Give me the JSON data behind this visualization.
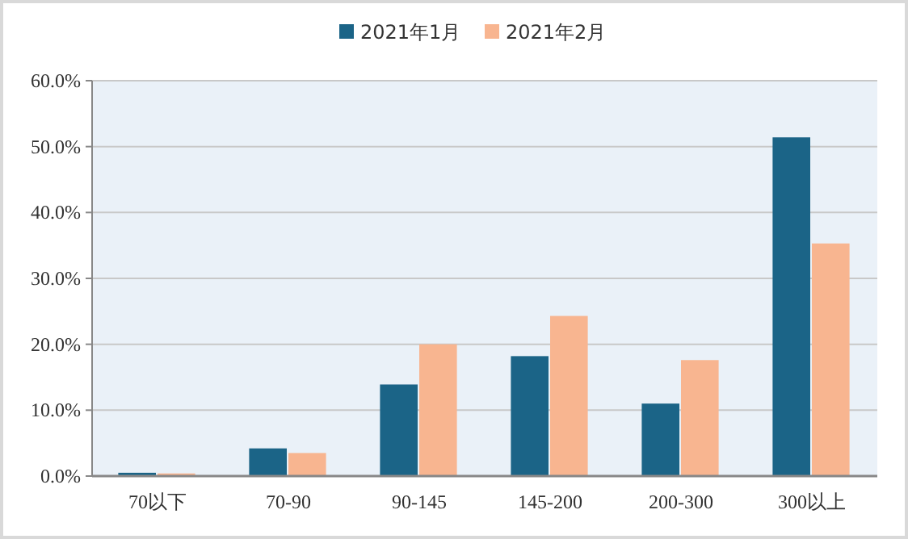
{
  "chart_data": {
    "type": "bar",
    "categories": [
      "70以下",
      "70-90",
      "90-145",
      "145-200",
      "200-300",
      "300以上"
    ],
    "series": [
      {
        "name": "2021年1月",
        "color": "#1b6487",
        "values": [
          0.5,
          4.2,
          13.9,
          18.2,
          11.0,
          51.4
        ]
      },
      {
        "name": "2021年2月",
        "color": "#f8b590",
        "values": [
          0.4,
          3.5,
          20.0,
          24.3,
          17.6,
          35.3
        ]
      }
    ],
    "ylim": [
      0,
      60
    ],
    "yticks": [
      {
        "value": 0,
        "label": "0.0%"
      },
      {
        "value": 10,
        "label": "10.0%"
      },
      {
        "value": 20,
        "label": "20.0%"
      },
      {
        "value": 30,
        "label": "30.0%"
      },
      {
        "value": 40,
        "label": "40.0%"
      },
      {
        "value": 50,
        "label": "50.0%"
      },
      {
        "value": 60,
        "label": "60.0%"
      }
    ],
    "grid": "y",
    "legend": "top"
  }
}
